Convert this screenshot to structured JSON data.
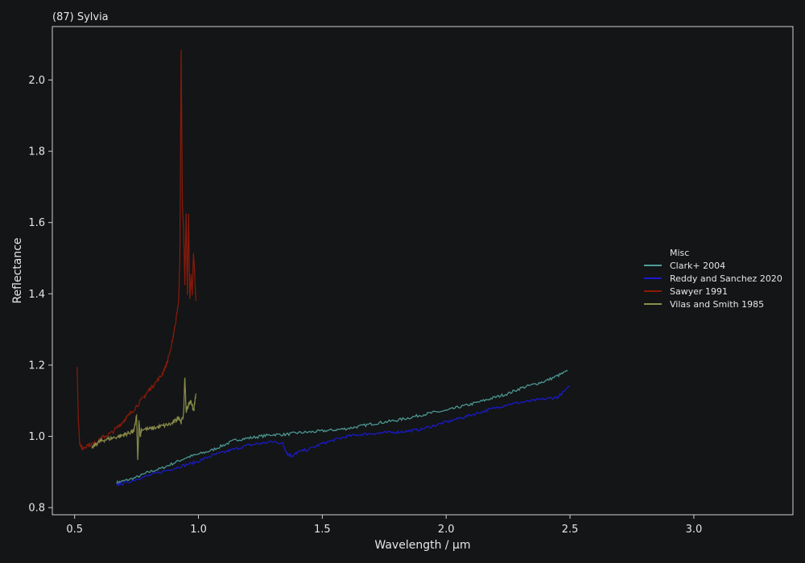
{
  "chart_data": {
    "type": "line",
    "title": "(87) Sylvia",
    "xlabel": "Wavelength / µm",
    "ylabel": "Reflectance",
    "xlim": [
      0.41,
      3.4
    ],
    "ylim": [
      0.78,
      2.15
    ],
    "xticks": [
      0.5,
      1.0,
      1.5,
      2.0,
      2.5,
      3.0
    ],
    "xtick_labels": [
      "0.5",
      "1.0",
      "1.5",
      "2.0",
      "2.5",
      "3.0"
    ],
    "yticks": [
      0.8,
      1.0,
      1.2,
      1.4,
      1.6,
      1.8,
      2.0
    ],
    "ytick_labels": [
      "0.8",
      "1.0",
      "1.2",
      "1.4",
      "1.6",
      "1.8",
      "2.0"
    ],
    "grid": false,
    "legend": {
      "title": "Misc",
      "position": "center-right"
    },
    "colors": {
      "background": "#131517",
      "frame": "#cfcfcf",
      "text": "#e6e6e6"
    },
    "series": [
      {
        "name": "Clark+ 2004",
        "color": "#4f9e98",
        "x": [
          0.67,
          0.7,
          0.75,
          0.8,
          0.85,
          0.9,
          0.95,
          1.0,
          1.05,
          1.1,
          1.15,
          1.2,
          1.25,
          1.3,
          1.35,
          1.4,
          1.45,
          1.5,
          1.55,
          1.6,
          1.65,
          1.7,
          1.75,
          1.8,
          1.85,
          1.9,
          1.95,
          2.0,
          2.05,
          2.1,
          2.15,
          2.2,
          2.25,
          2.3,
          2.35,
          2.4,
          2.45,
          2.49
        ],
        "y": [
          0.87,
          0.875,
          0.885,
          0.9,
          0.91,
          0.925,
          0.94,
          0.95,
          0.96,
          0.975,
          0.99,
          0.995,
          1.0,
          1.005,
          1.005,
          1.01,
          1.012,
          1.015,
          1.018,
          1.022,
          1.028,
          1.035,
          1.04,
          1.045,
          1.052,
          1.06,
          1.067,
          1.072,
          1.082,
          1.09,
          1.1,
          1.11,
          1.12,
          1.135,
          1.145,
          1.155,
          1.17,
          1.183
        ]
      },
      {
        "name": "Reddy and Sanchez 2020",
        "color": "#1a1acf",
        "x": [
          0.67,
          0.7,
          0.75,
          0.8,
          0.85,
          0.9,
          0.95,
          1.0,
          1.05,
          1.1,
          1.15,
          1.2,
          1.25,
          1.3,
          1.34,
          1.36,
          1.38,
          1.4,
          1.45,
          1.5,
          1.55,
          1.6,
          1.65,
          1.7,
          1.75,
          1.8,
          1.85,
          1.9,
          1.95,
          2.0,
          2.05,
          2.1,
          2.15,
          2.2,
          2.25,
          2.3,
          2.35,
          2.4,
          2.45,
          2.5
        ],
        "y": [
          0.865,
          0.868,
          0.88,
          0.89,
          0.9,
          0.91,
          0.92,
          0.93,
          0.945,
          0.955,
          0.965,
          0.975,
          0.98,
          0.985,
          0.98,
          0.95,
          0.945,
          0.955,
          0.965,
          0.98,
          0.99,
          1.0,
          1.005,
          1.008,
          1.01,
          1.012,
          1.015,
          1.02,
          1.03,
          1.04,
          1.05,
          1.06,
          1.07,
          1.08,
          1.09,
          1.095,
          1.1,
          1.105,
          1.11,
          1.14
        ]
      },
      {
        "name": "Sawyer 1991",
        "color": "#8b1a0a",
        "x": [
          0.51,
          0.515,
          0.52,
          0.53,
          0.55,
          0.58,
          0.6,
          0.62,
          0.65,
          0.68,
          0.7,
          0.72,
          0.75,
          0.78,
          0.8,
          0.82,
          0.85,
          0.87,
          0.89,
          0.9,
          0.91,
          0.92,
          0.925,
          0.93,
          0.935,
          0.94,
          0.945,
          0.95,
          0.955,
          0.96,
          0.965,
          0.97,
          0.975,
          0.98,
          0.99
        ],
        "y": [
          1.2,
          1.05,
          0.985,
          0.965,
          0.975,
          0.98,
          0.99,
          1.0,
          1.01,
          1.03,
          1.045,
          1.06,
          1.085,
          1.11,
          1.13,
          1.145,
          1.17,
          1.2,
          1.25,
          1.29,
          1.33,
          1.38,
          1.5,
          2.08,
          1.65,
          1.58,
          1.43,
          1.63,
          1.4,
          1.62,
          1.38,
          1.45,
          1.4,
          1.52,
          1.38
        ]
      },
      {
        "name": "Vilas and Smith 1985",
        "color": "#8d8f4b",
        "x": [
          0.57,
          0.58,
          0.6,
          0.62,
          0.65,
          0.68,
          0.7,
          0.72,
          0.74,
          0.75,
          0.755,
          0.76,
          0.765,
          0.77,
          0.8,
          0.83,
          0.86,
          0.89,
          0.91,
          0.92,
          0.93,
          0.94,
          0.945,
          0.95,
          0.96,
          0.97,
          0.98,
          0.99
        ],
        "y": [
          0.965,
          0.975,
          0.985,
          0.99,
          0.995,
          1.0,
          1.005,
          1.01,
          1.015,
          1.06,
          0.93,
          1.04,
          1.0,
          1.02,
          1.02,
          1.025,
          1.03,
          1.035,
          1.045,
          1.055,
          1.04,
          1.06,
          1.17,
          1.07,
          1.09,
          1.1,
          1.07,
          1.12
        ]
      }
    ]
  }
}
